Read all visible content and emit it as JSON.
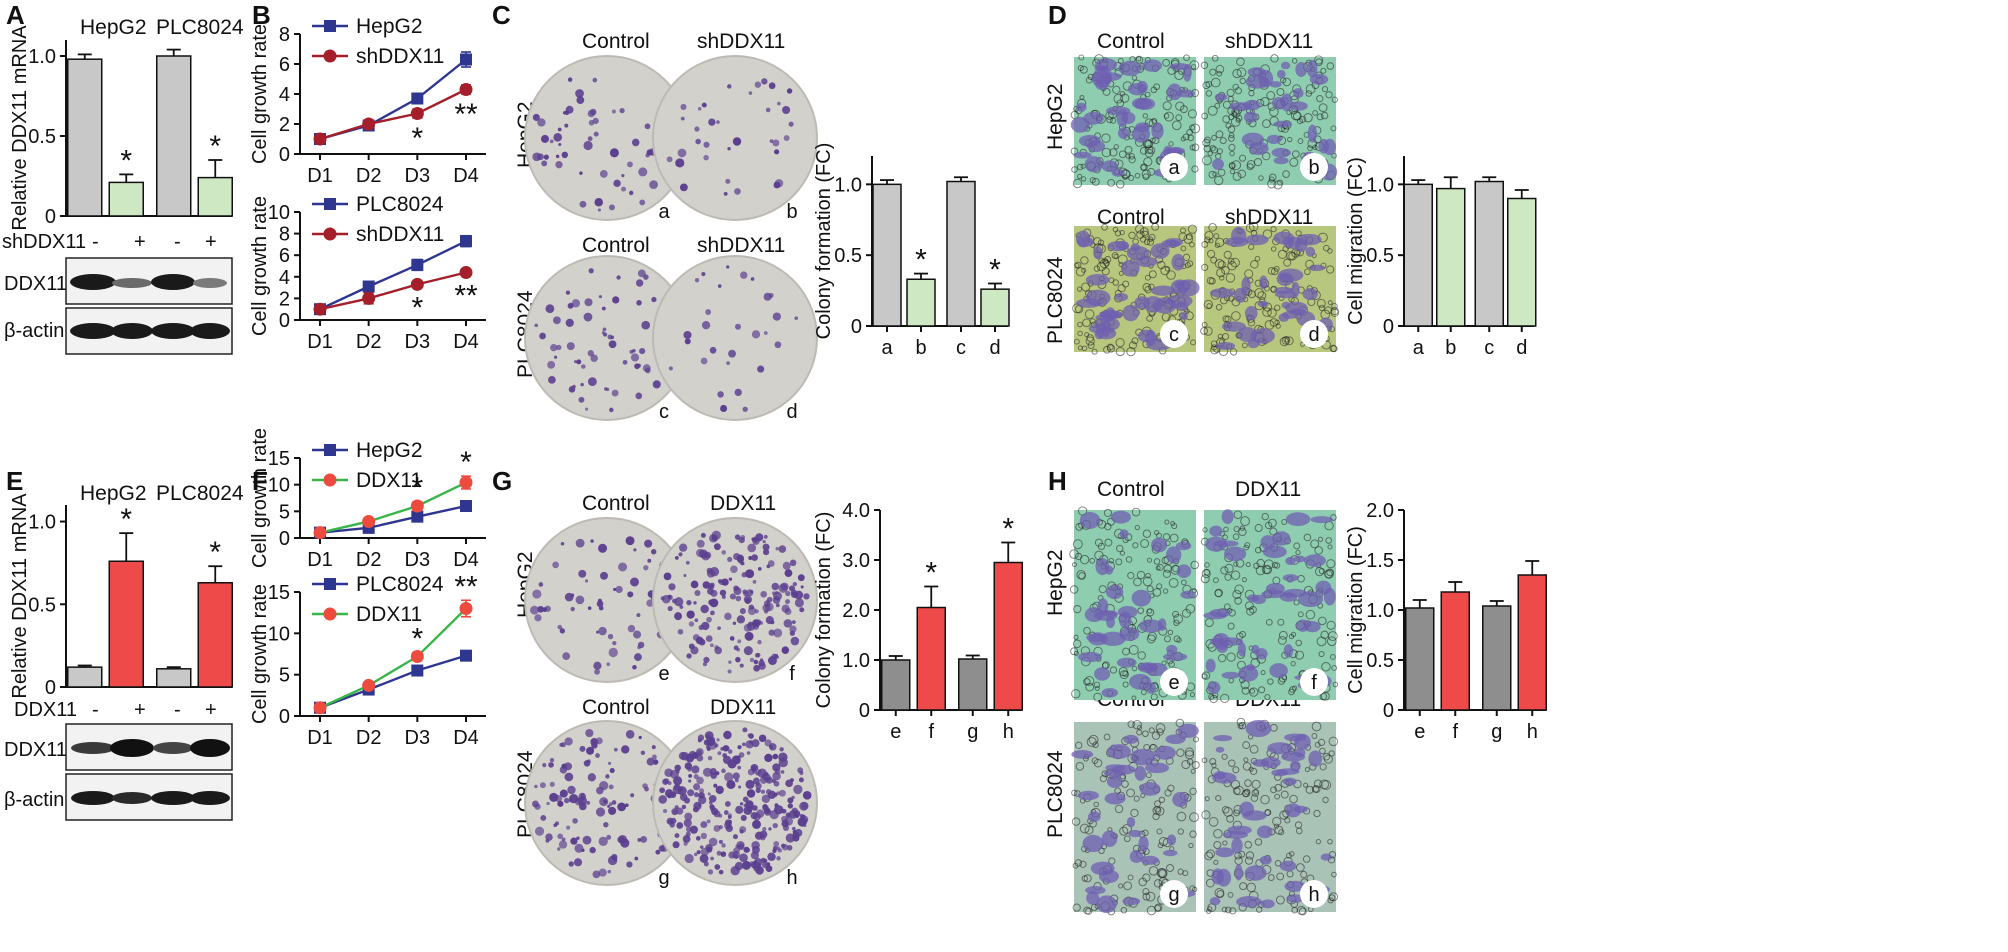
{
  "colors": {
    "control_gray": "#c8c8c8",
    "kd_green": "#cfe8c4",
    "oe_red": "#ef4a4a",
    "dark_gray": "#8e8e8e",
    "navy": "#2e3690",
    "maroon": "#a51f2a",
    "green_line": "#39b54a",
    "red_dot": "#ee4b3f",
    "dish": "#d3d1cc",
    "colony": "#5b3f8f",
    "migr_green": "#8fcdb0",
    "migr_olive": "#b8c77e",
    "cell": "#6f5fb2"
  },
  "panels": {
    "A": "A",
    "B": "B",
    "C": "C",
    "D": "D",
    "E": "E",
    "F": "F",
    "G": "G",
    "H": "H"
  },
  "headers": {
    "hepg2": "HepG2",
    "plc8024": "PLC8024",
    "control": "Control",
    "shddx11": "shDDX11",
    "ddx11": "DDX11",
    "beta_actin": "β-actin",
    "shddx11_row": "shDDX11",
    "ddx11_row": "DDX11"
  },
  "treat_signs": [
    "-",
    "+",
    "-",
    "+"
  ],
  "dish_labels": {
    "C": [
      "a",
      "b",
      "c",
      "d"
    ],
    "D": [
      "a",
      "b",
      "c",
      "d"
    ],
    "G": [
      "e",
      "f",
      "g",
      "h"
    ],
    "H": [
      "e",
      "f",
      "g",
      "h"
    ]
  },
  "chart_data": [
    {
      "id": "A",
      "type": "bar",
      "ylabel": "Relative DDX11 mRNA",
      "ylim": [
        0,
        1.1
      ],
      "yticks": [
        0,
        0.5,
        1.0
      ],
      "ytick_labels": [
        "0",
        "0.5",
        "1.0"
      ],
      "values": [
        0.98,
        0.21,
        1.0,
        0.24
      ],
      "errors": [
        0.03,
        0.05,
        0.04,
        0.11
      ],
      "sig": [
        "",
        "*",
        "",
        "*"
      ],
      "colors": [
        "control_gray",
        "kd_green",
        "control_gray",
        "kd_green"
      ],
      "groups": [
        "HepG2",
        "PLC8024"
      ]
    },
    {
      "id": "B1",
      "type": "line",
      "ylabel": "Cell growth rate",
      "categories": [
        "D1",
        "D2",
        "D3",
        "D4"
      ],
      "ylim": [
        0,
        8
      ],
      "yticks": [
        0,
        2,
        4,
        6,
        8
      ],
      "ytick_labels": [
        "0",
        "2",
        "4",
        "6",
        "8"
      ],
      "series": [
        {
          "name": "HepG2",
          "values": [
            1.0,
            1.9,
            3.7,
            6.3
          ],
          "errors": [
            0,
            0.3,
            0.2,
            0.5
          ],
          "line": "navy",
          "marker": "square",
          "mcolor": "navy"
        },
        {
          "name": "shDDX11",
          "values": [
            1.0,
            2.0,
            2.7,
            4.3
          ],
          "errors": [
            0,
            0.2,
            0.3,
            0.3
          ],
          "line": "maroon",
          "marker": "circle",
          "mcolor": "maroon"
        }
      ],
      "sig": [
        "",
        "",
        "*",
        "**"
      ]
    },
    {
      "id": "B2",
      "type": "line",
      "ylabel": "Cell growth rate",
      "categories": [
        "D1",
        "D2",
        "D3",
        "D4"
      ],
      "ylim": [
        0,
        10
      ],
      "yticks": [
        0,
        2,
        4,
        6,
        8,
        10
      ],
      "ytick_labels": [
        "0",
        "2",
        "4",
        "6",
        "8",
        "10"
      ],
      "series": [
        {
          "name": "PLC8024",
          "values": [
            1.0,
            3.1,
            5.1,
            7.3
          ],
          "errors": [
            0,
            0.4,
            0.5,
            0.5
          ],
          "line": "navy",
          "marker": "square",
          "mcolor": "navy"
        },
        {
          "name": "shDDX11",
          "values": [
            1.0,
            2.0,
            3.3,
            4.4
          ],
          "errors": [
            0,
            0.5,
            0.3,
            0.3
          ],
          "line": "maroon",
          "marker": "circle",
          "mcolor": "maroon"
        }
      ],
      "sig": [
        "",
        "",
        "*",
        "**"
      ]
    },
    {
      "id": "C",
      "type": "bar",
      "ylabel": "Colony formation (FC)",
      "categories": [
        "a",
        "b",
        "c",
        "d"
      ],
      "ylim": [
        0,
        1.2
      ],
      "yticks": [
        0,
        0.5,
        1.0
      ],
      "ytick_labels": [
        "0",
        "0.5",
        "1.0"
      ],
      "values": [
        1.0,
        0.33,
        1.02,
        0.26
      ],
      "errors": [
        0.03,
        0.04,
        0.03,
        0.04
      ],
      "sig": [
        "",
        "*",
        "",
        "*"
      ],
      "colors": [
        "control_gray",
        "kd_green",
        "control_gray",
        "kd_green"
      ]
    },
    {
      "id": "D",
      "type": "bar",
      "ylabel": "Cell migration (FC)",
      "categories": [
        "a",
        "b",
        "c",
        "d"
      ],
      "ylim": [
        0,
        1.2
      ],
      "yticks": [
        0,
        0.5,
        1.0
      ],
      "ytick_labels": [
        "0",
        "0.5",
        "1.0"
      ],
      "values": [
        1.0,
        0.97,
        1.02,
        0.9
      ],
      "errors": [
        0.03,
        0.08,
        0.03,
        0.06
      ],
      "sig": [
        "",
        "",
        "",
        ""
      ],
      "colors": [
        "control_gray",
        "kd_green",
        "control_gray",
        "kd_green"
      ]
    },
    {
      "id": "E",
      "type": "bar",
      "ylabel": "Relative DDX11 mRNA",
      "ylim": [
        0,
        1.1
      ],
      "yticks": [
        0,
        0.5,
        1.0
      ],
      "ytick_labels": [
        "0",
        "0.5",
        "1.0"
      ],
      "values": [
        0.12,
        0.76,
        0.11,
        0.63
      ],
      "errors": [
        0.01,
        0.17,
        0.01,
        0.1
      ],
      "sig": [
        "",
        "*",
        "",
        "*"
      ],
      "colors": [
        "control_gray",
        "oe_red",
        "control_gray",
        "oe_red"
      ],
      "groups": [
        "HepG2",
        "PLC8024"
      ]
    },
    {
      "id": "F1",
      "type": "line",
      "ylabel": "Cell growth rate",
      "categories": [
        "D1",
        "D2",
        "D3",
        "D4"
      ],
      "ylim": [
        0,
        15
      ],
      "yticks": [
        0,
        5,
        10,
        15
      ],
      "ytick_labels": [
        "0",
        "5",
        "10",
        "15"
      ],
      "series": [
        {
          "name": "HepG2",
          "values": [
            1.0,
            1.9,
            4.0,
            6.0
          ],
          "errors": [
            0,
            0.2,
            0.2,
            0.2
          ],
          "line": "navy",
          "marker": "square",
          "mcolor": "navy"
        },
        {
          "name": "DDX11",
          "values": [
            1.0,
            3.1,
            6.0,
            10.4
          ],
          "errors": [
            0,
            0.3,
            0.8,
            1.2
          ],
          "line": "green_line",
          "marker": "circle",
          "mcolor": "red_dot"
        }
      ],
      "sig": [
        "",
        "",
        "*",
        "*"
      ]
    },
    {
      "id": "F2",
      "type": "line",
      "ylabel": "Cell growth rate",
      "categories": [
        "D1",
        "D2",
        "D3",
        "D4"
      ],
      "ylim": [
        0,
        15
      ],
      "yticks": [
        0,
        5,
        10,
        15
      ],
      "ytick_labels": [
        "0",
        "5",
        "10",
        "15"
      ],
      "series": [
        {
          "name": "PLC8024",
          "values": [
            1.0,
            3.2,
            5.5,
            7.3
          ],
          "errors": [
            0,
            0.2,
            0.4,
            0.2
          ],
          "line": "navy",
          "marker": "square",
          "mcolor": "navy"
        },
        {
          "name": "DDX11",
          "values": [
            1.0,
            3.7,
            7.2,
            13.0
          ],
          "errors": [
            0,
            0.2,
            0.5,
            1.0
          ],
          "line": "green_line",
          "marker": "circle",
          "mcolor": "red_dot"
        }
      ],
      "sig": [
        "",
        "",
        "*",
        "**"
      ]
    },
    {
      "id": "G",
      "type": "bar",
      "ylabel": "Colony formation (FC)",
      "categories": [
        "e",
        "f",
        "g",
        "h"
      ],
      "ylim": [
        0,
        4
      ],
      "yticks": [
        0,
        1,
        2,
        3,
        4
      ],
      "ytick_labels": [
        "0",
        "1.0",
        "2.0",
        "3.0",
        "4.0"
      ],
      "values": [
        1.0,
        2.05,
        1.02,
        2.95
      ],
      "errors": [
        0.08,
        0.42,
        0.07,
        0.4
      ],
      "sig": [
        "",
        "*",
        "",
        "*"
      ],
      "colors": [
        "dark_gray",
        "oe_red",
        "dark_gray",
        "oe_red"
      ]
    },
    {
      "id": "H",
      "type": "bar",
      "ylabel": "Cell migration (FC)",
      "categories": [
        "e",
        "f",
        "g",
        "h"
      ],
      "ylim": [
        0,
        2
      ],
      "yticks": [
        0,
        0.5,
        1,
        1.5,
        2
      ],
      "ytick_labels": [
        "0",
        "0.5",
        "1.0",
        "1.5",
        "2.0"
      ],
      "values": [
        1.02,
        1.18,
        1.04,
        1.35
      ],
      "errors": [
        0.08,
        0.1,
        0.05,
        0.14
      ],
      "sig": [
        "",
        "",
        "",
        ""
      ],
      "colors": [
        "dark_gray",
        "oe_red",
        "dark_gray",
        "oe_red"
      ]
    }
  ]
}
